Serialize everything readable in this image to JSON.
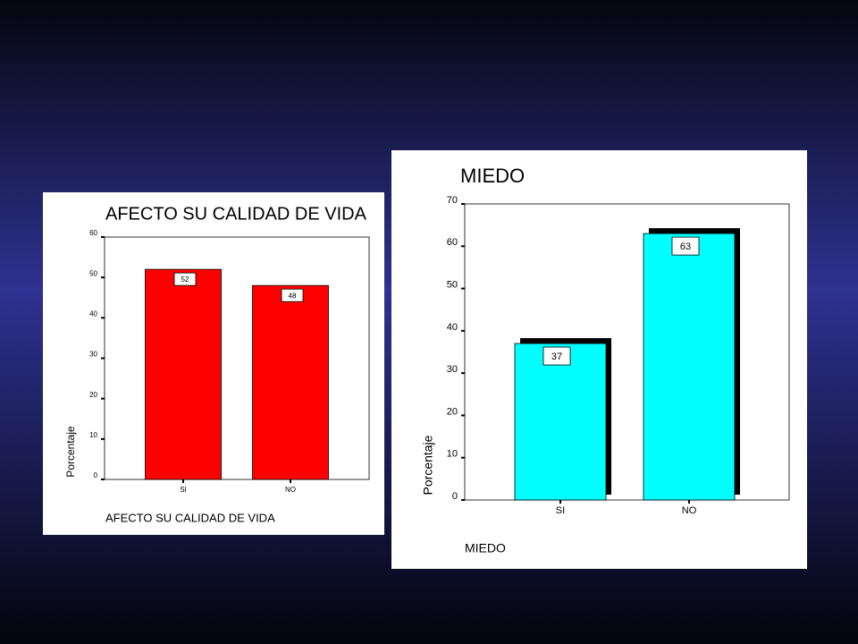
{
  "chart_data": [
    {
      "type": "bar",
      "title": "AFECTO SU CALIDAD DE VIDA",
      "x_label": "AFECTO SU CALIDAD DE VIDA",
      "y_label": "Porcentaje",
      "categories": [
        "SI",
        "NO"
      ],
      "values": [
        52,
        48
      ],
      "color": "#ff0000",
      "ylim": [
        0,
        60
      ],
      "yticks": [
        0,
        10,
        20,
        30,
        40,
        50,
        60
      ]
    },
    {
      "type": "bar",
      "title": "MIEDO",
      "x_label": "MIEDO",
      "y_label": "Porcentaje",
      "categories": [
        "SI",
        "NO"
      ],
      "values": [
        37,
        63
      ],
      "color": "#00ffff",
      "ylim": [
        0,
        70
      ],
      "yticks": [
        0,
        10,
        20,
        30,
        40,
        50,
        60,
        70
      ]
    }
  ]
}
